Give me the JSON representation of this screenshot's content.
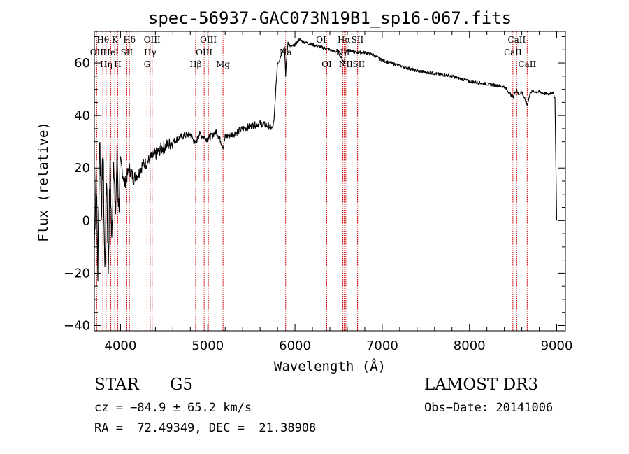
{
  "chart_data": {
    "type": "line",
    "title": "spec-56937-GAC073N19B1_sp16-067.fits",
    "xlabel": "Wavelength (Å)",
    "ylabel": "Flux (relative)",
    "xlim": [
      3700,
      9100
    ],
    "ylim": [
      -42,
      72
    ],
    "xticks": [
      4000,
      5000,
      6000,
      7000,
      8000,
      9000
    ],
    "xtick_labels": [
      "4000",
      "5000",
      "6000",
      "7000",
      "8000",
      "9000"
    ],
    "yticks": [
      -40,
      -20,
      0,
      20,
      40,
      60
    ],
    "ytick_labels": [
      "−40",
      "−20",
      "0",
      "20",
      "40",
      "60"
    ],
    "grid": false,
    "series": [
      {
        "name": "spectrum",
        "x": [
          3700,
          3720,
          3740,
          3760,
          3780,
          3800,
          3820,
          3840,
          3860,
          3880,
          3900,
          3920,
          3940,
          3960,
          3980,
          4000,
          4050,
          4100,
          4150,
          4200,
          4250,
          4300,
          4350,
          4400,
          4450,
          4500,
          4600,
          4700,
          4800,
          4860,
          4900,
          5000,
          5100,
          5180,
          5200,
          5300,
          5400,
          5500,
          5600,
          5700,
          5740,
          5760,
          5780,
          5800,
          5820,
          5850,
          5880,
          5893,
          5900,
          5920,
          5950,
          6000,
          6050,
          6100,
          6200,
          6300,
          6400,
          6500,
          6563,
          6580,
          6600,
          6700,
          6800,
          6900,
          7000,
          7200,
          7400,
          7600,
          7800,
          8000,
          8200,
          8400,
          8498,
          8542,
          8560,
          8600,
          8662,
          8700,
          8800,
          8900,
          8950,
          8980,
          9000
        ],
        "y": [
          -10,
          20,
          -20,
          33,
          5,
          25,
          -20,
          18,
          -18,
          22,
          -10,
          28,
          0,
          25,
          5,
          22,
          14,
          20,
          16,
          18,
          21,
          22,
          24,
          25,
          27,
          28,
          30,
          32,
          33,
          29,
          33,
          31,
          34,
          28,
          32,
          33,
          35,
          36,
          37,
          36,
          35,
          38,
          50,
          60,
          61,
          64,
          66,
          55,
          60,
          68,
          66,
          67,
          69,
          68,
          67,
          66,
          65,
          64,
          60,
          64,
          65,
          64,
          64,
          63,
          61,
          59,
          57,
          56,
          55,
          53,
          52,
          51,
          47,
          50,
          48,
          49,
          44,
          49,
          49,
          48,
          49,
          47,
          0
        ]
      }
    ],
    "line_markers": [
      {
        "label": "Hθ",
        "x": 3798,
        "row": 1
      },
      {
        "label": "OII",
        "x": 3727,
        "row": 2
      },
      {
        "label": "Hη",
        "x": 3835,
        "row": 3
      },
      {
        "label": "HeI",
        "x": 3889,
        "row": 2
      },
      {
        "label": "K",
        "x": 3934,
        "row": 1
      },
      {
        "label": "H",
        "x": 3968,
        "row": 3
      },
      {
        "label": "Hδ",
        "x": 4102,
        "row": 1
      },
      {
        "label": "SII",
        "x": 4072,
        "row": 2
      },
      {
        "label": "OIII",
        "x": 4363,
        "row": 1
      },
      {
        "label": "Hγ",
        "x": 4340,
        "row": 2
      },
      {
        "label": "G",
        "x": 4304,
        "row": 3
      },
      {
        "label": "OIII",
        "x": 5007,
        "row": 1
      },
      {
        "label": "OIII",
        "x": 4959,
        "row": 2
      },
      {
        "label": "Hβ",
        "x": 4861,
        "row": 3
      },
      {
        "label": "Mg",
        "x": 5175,
        "row": 3
      },
      {
        "label": "Na",
        "x": 5893,
        "row": 2
      },
      {
        "label": "OI",
        "x": 6300,
        "row": 1
      },
      {
        "label": "OI",
        "x": 6364,
        "row": 3
      },
      {
        "label": "Hα",
        "x": 6563,
        "row": 1
      },
      {
        "label": "NII",
        "x": 6548,
        "row": 2
      },
      {
        "label": "NII",
        "x": 6583,
        "row": 3
      },
      {
        "label": "SII",
        "x": 6716,
        "row": 1
      },
      {
        "label": "SII",
        "x": 6731,
        "row": 3
      },
      {
        "label": "CaII",
        "x": 8542,
        "row": 1
      },
      {
        "label": "CaII",
        "x": 8498,
        "row": 2
      },
      {
        "label": "CaII",
        "x": 8662,
        "row": 3
      }
    ]
  },
  "footer": {
    "class_label": "STAR",
    "subclass": "G5",
    "survey": "LAMOST DR3",
    "redshift": "cz = −84.9 ± 65.2 km/s",
    "obs_date": "Obs−Date: 20141006",
    "coords": "RA =  72.49349, DEC =  21.38908"
  }
}
